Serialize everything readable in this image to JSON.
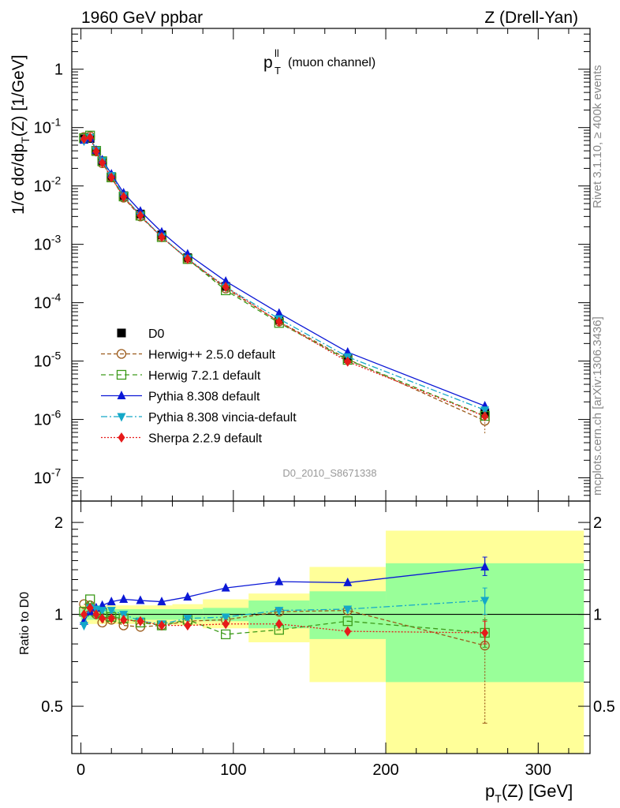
{
  "header": {
    "left": "1960 GeV ppbar",
    "right": "Z (Drell-Yan)"
  },
  "side": {
    "rivet": "Rivet 3.1.10, ≥ 400k events",
    "mcplots": "mcplots.cern.ch [arXiv:1306.3436]"
  },
  "plot": {
    "title_main": "p",
    "title_sup": "ll",
    "title_sub": "T",
    "title_rest": "(muon channel)",
    "analysis": "D0_2010_S8671338"
  },
  "axes": {
    "ylabel_top": "1/σ dσ/dp_T(Z) [1/GeV]",
    "ylabel_bottom": "Ratio to D0",
    "xlabel": "p_T(Z) [GeV]"
  },
  "colors": {
    "data": "#000000",
    "herwigpp": "#9b5a1a",
    "herwig7": "#3c9a1a",
    "pythia": "#0b18d6",
    "vincia": "#14a8c8",
    "sherpa": "#e61a1a",
    "band_outer": "#ffff99",
    "band_inner": "#99ff99"
  },
  "chart_data": [
    {
      "type": "line",
      "title": "p_T^ll (muon channel)",
      "xlabel": "p_T(Z) [GeV]",
      "ylabel": "1/σ dσ/dp_T(Z) [1/GeV]",
      "xlim": [
        -6,
        334
      ],
      "ylim": [
        4e-08,
        5
      ],
      "yscale": "log",
      "x_ticks": [
        0,
        100,
        200,
        300
      ],
      "y_ticks": [
        {
          "v": 1,
          "label": "1"
        },
        {
          "v": 0.1,
          "label": "10",
          "exp": "-1"
        },
        {
          "v": 0.01,
          "label": "10",
          "exp": "-2"
        },
        {
          "v": 0.001,
          "label": "10",
          "exp": "-3"
        },
        {
          "v": 0.0001,
          "label": "10",
          "exp": "-4"
        },
        {
          "v": 1e-05,
          "label": "10",
          "exp": "-5"
        },
        {
          "v": 1e-06,
          "label": "10",
          "exp": "-6"
        },
        {
          "v": 1e-07,
          "label": "10",
          "exp": "-7"
        }
      ],
      "x": [
        2,
        6,
        10,
        14,
        20,
        28,
        39,
        53,
        70,
        95,
        130,
        175,
        265
      ],
      "legend_position": "lower-left",
      "series": [
        {
          "name": "D0",
          "key": "data",
          "values": [
            0.064,
            0.065,
            0.039,
            0.026,
            0.0145,
            0.0068,
            0.0033,
            0.00145,
            0.00059,
            0.00019,
            5.1e-05,
            1.1e-05,
            1.3e-06
          ]
        },
        {
          "name": "Herwig++ 2.5.0 default",
          "key": "herwigpp",
          "values": [
            0.069,
            0.071,
            0.039,
            0.0245,
            0.014,
            0.0063,
            0.003,
            0.00133,
            0.00056,
            0.000175,
            4.75e-05,
            1.08e-05,
            9.5e-07
          ]
        },
        {
          "name": "Herwig 7.2.1 default",
          "key": "herwig7",
          "values": [
            0.066,
            0.073,
            0.04,
            0.0265,
            0.014,
            0.0066,
            0.0031,
            0.00133,
            0.00056,
            0.000163,
            4.5e-05,
            1.05e-05,
            1.15e-06
          ]
        },
        {
          "name": "Pythia 8.308 default",
          "key": "pythia",
          "values": [
            0.061,
            0.066,
            0.041,
            0.028,
            0.016,
            0.0076,
            0.0037,
            0.00162,
            0.00068,
            0.000233,
            6.6e-05,
            1.42e-05,
            1.7e-06
          ]
        },
        {
          "name": "Pythia 8.308 vincia-default",
          "key": "vincia",
          "values": [
            0.059,
            0.068,
            0.0405,
            0.027,
            0.015,
            0.0068,
            0.0031,
            0.00134,
            0.00057,
            0.000185,
            5.3e-05,
            1.18e-05,
            1.45e-06
          ]
        },
        {
          "name": "Sherpa 2.2.9 default",
          "key": "sherpa",
          "values": [
            0.064,
            0.068,
            0.039,
            0.025,
            0.014,
            0.0065,
            0.0031,
            0.00133,
            0.00056,
            0.000186,
            4.7e-05,
            9.8e-06,
            1.13e-06
          ]
        }
      ]
    },
    {
      "type": "line",
      "title": "Ratio to D0",
      "xlabel": "p_T(Z) [GeV]",
      "ylabel": "Ratio to D0",
      "xlim": [
        -6,
        334
      ],
      "ylim": [
        0.35,
        2.35
      ],
      "yscale": "log",
      "y_ticks": [
        {
          "v": 0.5,
          "label": "0.5"
        },
        {
          "v": 1,
          "label": "1"
        },
        {
          "v": 2,
          "label": "2"
        }
      ],
      "x": [
        2,
        6,
        10,
        14,
        20,
        28,
        39,
        53,
        70,
        95,
        130,
        175,
        265
      ],
      "bands": [
        {
          "x0": 0,
          "x1": 4,
          "outer": [
            0.93,
            1.07
          ],
          "inner": [
            0.96,
            1.04
          ]
        },
        {
          "x0": 4,
          "x1": 8,
          "outer": [
            0.93,
            1.07
          ],
          "inner": [
            0.96,
            1.04
          ]
        },
        {
          "x0": 8,
          "x1": 12,
          "outer": [
            0.93,
            1.07
          ],
          "inner": [
            0.96,
            1.04
          ]
        },
        {
          "x0": 12,
          "x1": 16,
          "outer": [
            0.93,
            1.07
          ],
          "inner": [
            0.96,
            1.04
          ]
        },
        {
          "x0": 16,
          "x1": 24,
          "outer": [
            0.93,
            1.07
          ],
          "inner": [
            0.96,
            1.04
          ]
        },
        {
          "x0": 24,
          "x1": 32,
          "outer": [
            0.93,
            1.07
          ],
          "inner": [
            0.96,
            1.04
          ]
        },
        {
          "x0": 32,
          "x1": 46,
          "outer": [
            0.93,
            1.07
          ],
          "inner": [
            0.96,
            1.04
          ]
        },
        {
          "x0": 46,
          "x1": 60,
          "outer": [
            0.93,
            1.07
          ],
          "inner": [
            0.96,
            1.04
          ]
        },
        {
          "x0": 60,
          "x1": 80,
          "outer": [
            0.92,
            1.08
          ],
          "inner": [
            0.96,
            1.04
          ]
        },
        {
          "x0": 80,
          "x1": 110,
          "outer": [
            0.9,
            1.12
          ],
          "inner": [
            0.95,
            1.05
          ]
        },
        {
          "x0": 110,
          "x1": 150,
          "outer": [
            0.81,
            1.17
          ],
          "inner": [
            0.9,
            1.11
          ]
        },
        {
          "x0": 150,
          "x1": 200,
          "outer": [
            0.6,
            1.43
          ],
          "inner": [
            0.83,
            1.19
          ]
        },
        {
          "x0": 200,
          "x1": 330,
          "outer": [
            0.35,
            1.88
          ],
          "inner": [
            0.6,
            1.47
          ]
        }
      ],
      "series": [
        {
          "name": "Herwig++ 2.5.0 default",
          "key": "herwigpp",
          "values": [
            1.08,
            1.07,
            1.0,
            0.94,
            0.96,
            0.92,
            0.91,
            0.92,
            0.95,
            0.96,
            1.02,
            1.03,
            0.79
          ],
          "last_err": [
            0.44,
            1.0
          ]
        },
        {
          "name": "Herwig 7.2.1 default",
          "key": "herwig7",
          "values": [
            1.02,
            1.12,
            1.02,
            1.01,
            0.98,
            0.97,
            0.94,
            0.92,
            0.96,
            0.86,
            0.89,
            0.95,
            0.87
          ],
          "last_err": [
            0.78,
            0.96
          ]
        },
        {
          "name": "Pythia 8.308 default",
          "key": "pythia",
          "values": [
            0.95,
            1.02,
            1.05,
            1.07,
            1.1,
            1.12,
            1.11,
            1.1,
            1.14,
            1.22,
            1.28,
            1.27,
            1.43
          ],
          "last_err": [
            1.34,
            1.54
          ]
        },
        {
          "name": "Pythia 8.308 vincia-default",
          "key": "vincia",
          "values": [
            0.92,
            1.05,
            1.04,
            1.03,
            1.03,
            1.0,
            0.95,
            0.93,
            0.97,
            0.98,
            1.03,
            1.04,
            1.11
          ],
          "last_err": [
            1.0,
            1.22
          ]
        },
        {
          "name": "Sherpa 2.2.9 default",
          "key": "sherpa",
          "values": [
            1.0,
            1.05,
            1.0,
            0.97,
            0.97,
            0.96,
            0.95,
            0.92,
            0.92,
            0.93,
            0.93,
            0.88,
            0.87
          ],
          "last_err": [
            0.8,
            0.95
          ]
        }
      ]
    }
  ]
}
